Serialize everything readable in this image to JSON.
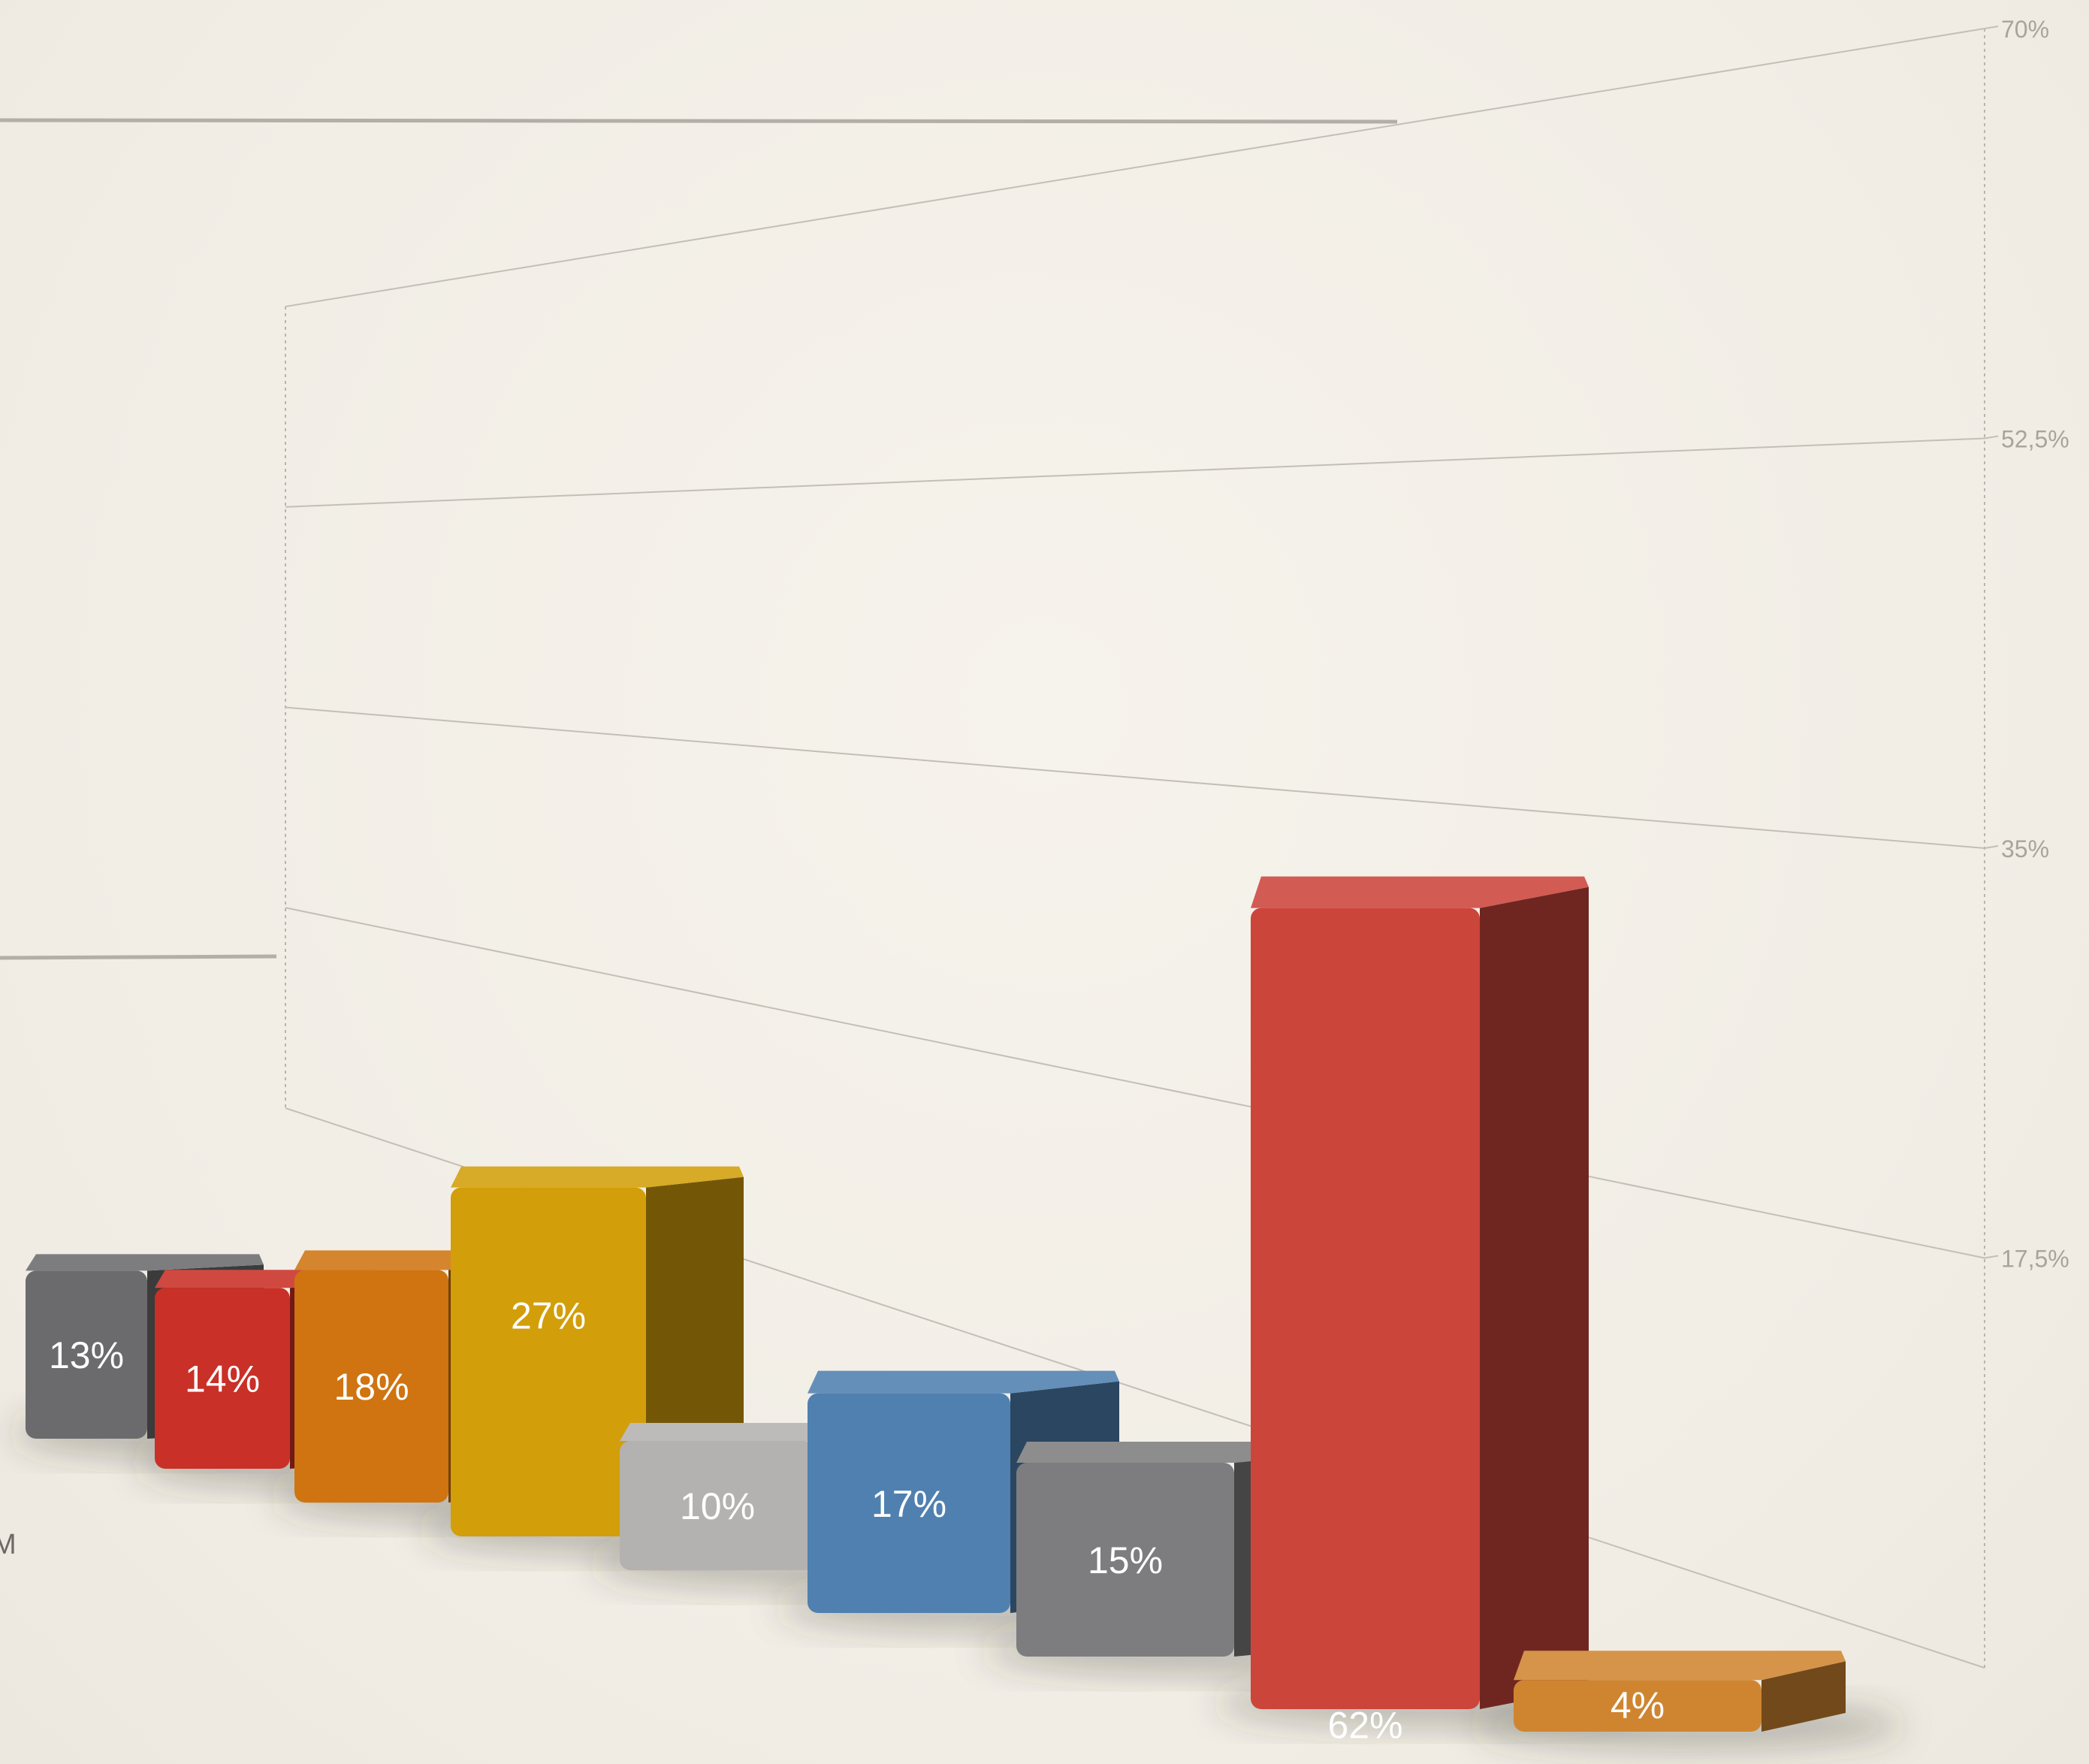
{
  "chart_data": {
    "type": "bar",
    "title": "",
    "xlabel": "",
    "ylabel": "",
    "ylim": [
      0,
      70
    ],
    "y_ticks": [
      "17,5%",
      "35%",
      "52,5%",
      "70%"
    ],
    "y_tick_values": [
      17.5,
      35,
      52.5,
      70
    ],
    "grid": true,
    "legend": "none",
    "partial_label": "M",
    "values": [
      13,
      14,
      18,
      27,
      10,
      17,
      15,
      62,
      4
    ],
    "value_labels": [
      "13%",
      "14%",
      "18%",
      "27%",
      "10%",
      "17%",
      "15%",
      "62%",
      "4%"
    ],
    "colors": [
      "#6b6b6d",
      "#c93027",
      "#cf7410",
      "#d29e0a",
      "#b4b2b0",
      "#4f80b0",
      "#7d7d7f",
      "#cc453b",
      "#cf8530"
    ]
  }
}
